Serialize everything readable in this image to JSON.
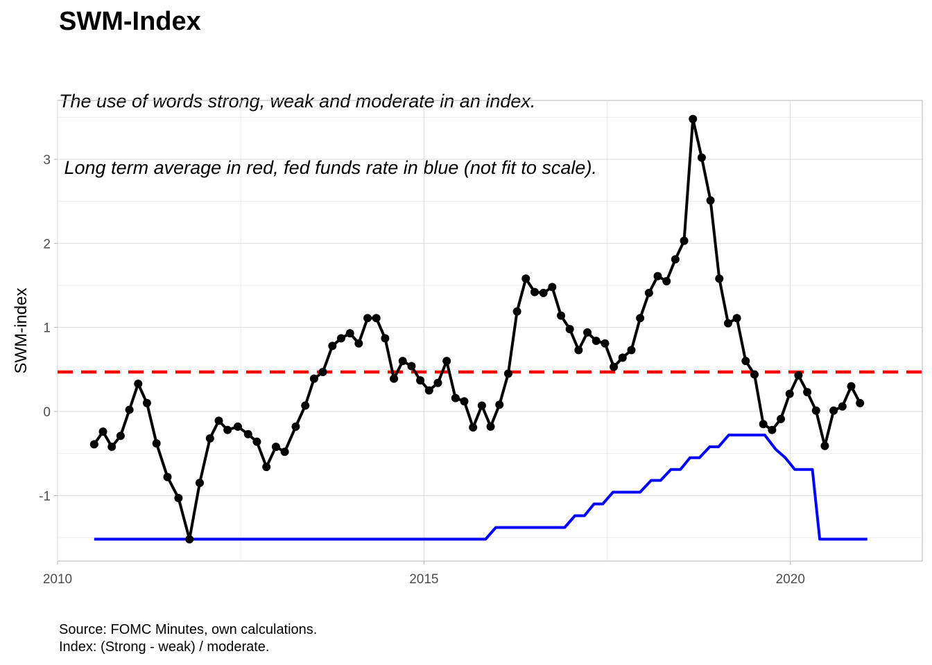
{
  "chart_data": {
    "type": "line",
    "title": "SWM-Index",
    "subtitle_lines": [
      "The use of words strong, weak and moderate in an index.",
      " Long term average in red, fed funds rate in blue (not fit to scale)."
    ],
    "xlabel": "",
    "ylabel": "SWM-index",
    "xlim": [
      2010,
      2021.8
    ],
    "ylim": [
      -1.78,
      3.7
    ],
    "x_ticks": [
      2010,
      2015,
      2020
    ],
    "y_ticks": [
      -1,
      0,
      1,
      2,
      3
    ],
    "y_tick_labels": [
      "-1",
      "0",
      "1",
      "2",
      "3"
    ],
    "grid": true,
    "legend": "none",
    "series": [
      {
        "color": "#000000",
        "style": "line+points",
        "points": [
          [
            2010.5,
            -0.39
          ],
          [
            2010.62,
            -0.24
          ],
          [
            2010.74,
            -0.42
          ],
          [
            2010.86,
            -0.29
          ],
          [
            2010.98,
            0.02
          ],
          [
            2011.1,
            0.33
          ],
          [
            2011.22,
            0.1
          ],
          [
            2011.35,
            -0.38
          ],
          [
            2011.5,
            -0.78
          ],
          [
            2011.65,
            -1.03
          ],
          [
            2011.8,
            -1.52
          ],
          [
            2011.94,
            -0.85
          ],
          [
            2012.08,
            -0.32
          ],
          [
            2012.2,
            -0.11
          ],
          [
            2012.32,
            -0.22
          ],
          [
            2012.46,
            -0.18
          ],
          [
            2012.6,
            -0.27
          ],
          [
            2012.72,
            -0.36
          ],
          [
            2012.85,
            -0.66
          ],
          [
            2012.98,
            -0.42
          ],
          [
            2013.1,
            -0.48
          ],
          [
            2013.25,
            -0.18
          ],
          [
            2013.38,
            0.07
          ],
          [
            2013.5,
            0.39
          ],
          [
            2013.62,
            0.47
          ],
          [
            2013.75,
            0.78
          ],
          [
            2013.87,
            0.87
          ],
          [
            2013.99,
            0.93
          ],
          [
            2014.11,
            0.81
          ],
          [
            2014.23,
            1.11
          ],
          [
            2014.35,
            1.11
          ],
          [
            2014.47,
            0.87
          ],
          [
            2014.59,
            0.39
          ],
          [
            2014.71,
            0.6
          ],
          [
            2014.83,
            0.54
          ],
          [
            2014.95,
            0.37
          ],
          [
            2015.07,
            0.25
          ],
          [
            2015.19,
            0.34
          ],
          [
            2015.31,
            0.6
          ],
          [
            2015.43,
            0.16
          ],
          [
            2015.55,
            0.12
          ],
          [
            2015.67,
            -0.19
          ],
          [
            2015.79,
            0.07
          ],
          [
            2015.91,
            -0.18
          ],
          [
            2016.03,
            0.08
          ],
          [
            2016.15,
            0.45
          ],
          [
            2016.27,
            1.19
          ],
          [
            2016.39,
            1.58
          ],
          [
            2016.51,
            1.42
          ],
          [
            2016.63,
            1.41
          ],
          [
            2016.75,
            1.48
          ],
          [
            2016.87,
            1.14
          ],
          [
            2016.99,
            0.98
          ],
          [
            2017.11,
            0.73
          ],
          [
            2017.23,
            0.94
          ],
          [
            2017.35,
            0.84
          ],
          [
            2017.47,
            0.81
          ],
          [
            2017.59,
            0.53
          ],
          [
            2017.71,
            0.64
          ],
          [
            2017.83,
            0.73
          ],
          [
            2017.95,
            1.11
          ],
          [
            2018.07,
            1.41
          ],
          [
            2018.19,
            1.61
          ],
          [
            2018.31,
            1.55
          ],
          [
            2018.43,
            1.81
          ],
          [
            2018.55,
            2.03
          ],
          [
            2018.67,
            3.48
          ],
          [
            2018.79,
            3.02
          ],
          [
            2018.91,
            2.51
          ],
          [
            2019.03,
            1.58
          ],
          [
            2019.15,
            1.05
          ],
          [
            2019.27,
            1.11
          ],
          [
            2019.39,
            0.6
          ],
          [
            2019.51,
            0.44
          ],
          [
            2019.63,
            -0.15
          ],
          [
            2019.75,
            -0.22
          ],
          [
            2019.87,
            -0.09
          ],
          [
            2019.99,
            0.21
          ],
          [
            2020.11,
            0.43
          ],
          [
            2020.23,
            0.23
          ],
          [
            2020.35,
            0.01
          ],
          [
            2020.47,
            -0.41
          ],
          [
            2020.59,
            0.01
          ],
          [
            2020.71,
            0.06
          ],
          [
            2020.83,
            0.3
          ],
          [
            2020.95,
            0.1
          ]
        ]
      },
      {
        "color": "#ff0000",
        "style": "dashed",
        "points": [
          [
            2010,
            0.47
          ],
          [
            2021.8,
            0.47
          ]
        ]
      },
      {
        "color": "#0000ff",
        "style": "line",
        "points": [
          [
            2010.5,
            -1.52
          ],
          [
            2015.84,
            -1.52
          ],
          [
            2015.98,
            -1.38
          ],
          [
            2016.92,
            -1.38
          ],
          [
            2017.06,
            -1.24
          ],
          [
            2017.19,
            -1.24
          ],
          [
            2017.32,
            -1.1
          ],
          [
            2017.44,
            -1.1
          ],
          [
            2017.58,
            -0.96
          ],
          [
            2017.95,
            -0.96
          ],
          [
            2018.1,
            -0.82
          ],
          [
            2018.23,
            -0.82
          ],
          [
            2018.37,
            -0.69
          ],
          [
            2018.5,
            -0.69
          ],
          [
            2018.63,
            -0.55
          ],
          [
            2018.76,
            -0.55
          ],
          [
            2018.9,
            -0.42
          ],
          [
            2019.02,
            -0.42
          ],
          [
            2019.16,
            -0.28
          ],
          [
            2019.65,
            -0.28
          ],
          [
            2019.8,
            -0.45
          ],
          [
            2019.93,
            -0.55
          ],
          [
            2020.06,
            -0.69
          ],
          [
            2020.3,
            -0.69
          ],
          [
            2020.4,
            -1.52
          ],
          [
            2021.05,
            -1.52
          ]
        ]
      }
    ]
  },
  "caption_lines": [
    "Source: FOMC Minutes, own calculations.",
    "Index: (Strong - weak) / moderate."
  ]
}
